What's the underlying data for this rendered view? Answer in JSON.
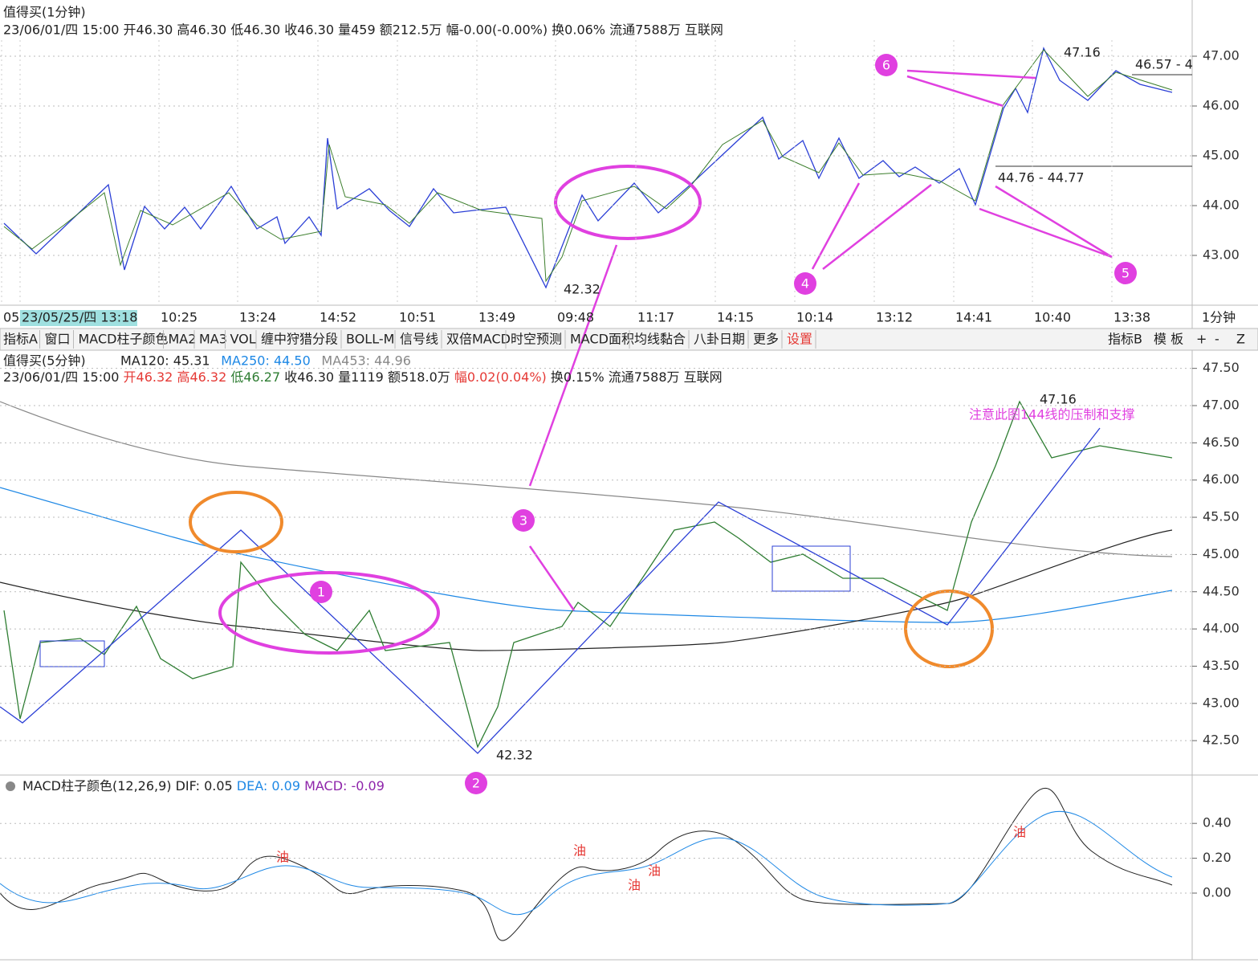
{
  "top_panel": {
    "title": "值得买(1分钟)",
    "info": "23/06/01/四 15:00 开46.30 高46.30 低46.30 收46.30 量459 额212.5万 幅-0.00(-0.00%) 换0.06% 流通7588万 互联网",
    "yticks": [
      {
        "value": 47,
        "label": "47.00"
      },
      {
        "value": 46,
        "label": "46.00"
      },
      {
        "value": 45,
        "label": "45.00"
      },
      {
        "value": 44,
        "label": "44.00"
      },
      {
        "value": 43,
        "label": "43.00"
      }
    ],
    "price_labels": [
      "47.16",
      "46.57 - 4",
      "44.76 - 44.77",
      "42.32"
    ],
    "time_labels": [
      "05",
      "23/05/25/四 13:18",
      "10:25",
      "13:24",
      "14:52",
      "10:51",
      "13:49",
      "09:48",
      "11:17",
      "14:15",
      "10:14",
      "13:12",
      "14:41",
      "10:40",
      "13:38"
    ],
    "period": "1分钟"
  },
  "toolbar": {
    "left": [
      "指标A",
      "窗口",
      "MACD柱子颜色",
      "MA2",
      "MA3",
      "VOL",
      "缠中狩猎分段",
      "BOLL-M",
      "信号线",
      "双倍MACD",
      "时空预测",
      "MACD面积",
      "均线黏合",
      "八卦日期",
      "更多",
      "设置"
    ],
    "right": [
      "指标B",
      "模 板",
      "+",
      "-",
      "Z"
    ]
  },
  "mid_panel": {
    "title": "值得买(5分钟)",
    "ma": [
      {
        "text": "MA120: 45.31",
        "color": "#222222"
      },
      {
        "text": "MA250: 44.50",
        "color": "#1e88e5"
      },
      {
        "text": "MA453: 44.96",
        "color": "#888888"
      }
    ],
    "info": [
      {
        "text": "23/06/01/四 15:00 ",
        "color": "#222222"
      },
      {
        "text": "开46.32 高46.32 ",
        "color": "#e53935"
      },
      {
        "text": "低46.27 ",
        "color": "#2e7d32"
      },
      {
        "text": "收46.30 量1119 额518.0万 ",
        "color": "#222222"
      },
      {
        "text": "幅0.02(0.04%) ",
        "color": "#e53935"
      },
      {
        "text": "换0.15% 流通7588万 互联网",
        "color": "#222222"
      }
    ],
    "yticks": [
      {
        "value": 47.5,
        "label": "47.50"
      },
      {
        "value": 47,
        "label": "47.00"
      },
      {
        "value": 46.5,
        "label": "46.50"
      },
      {
        "value": 46,
        "label": "46.00"
      },
      {
        "value": 45.5,
        "label": "45.50"
      },
      {
        "value": 45,
        "label": "45.00"
      },
      {
        "value": 44.5,
        "label": "44.50"
      },
      {
        "value": 44,
        "label": "44.00"
      },
      {
        "value": 43.5,
        "label": "43.50"
      },
      {
        "value": 43,
        "label": "43.00"
      },
      {
        "value": 42.5,
        "label": "42.50"
      }
    ],
    "price_labels": [
      "47.16",
      "42.32"
    ],
    "note": "注意此图144线的压制和支撑"
  },
  "macd_panel": {
    "info": [
      {
        "text": "MACD柱子颜色(12,26,9) ",
        "color": "#222222"
      },
      {
        "text": "DIF: 0.05 ",
        "color": "#222222"
      },
      {
        "text": "DEA: 0.09 ",
        "color": "#1e88e5"
      },
      {
        "text": "MACD: -0.09",
        "color": "#8e24aa"
      }
    ],
    "yticks": [
      {
        "value": 0.4,
        "label": "0.40"
      },
      {
        "value": 0.2,
        "label": "0.20"
      },
      {
        "value": 0,
        "label": "0.00"
      }
    ],
    "oil_label": "油"
  },
  "markers": [
    "1",
    "2",
    "3",
    "4",
    "5",
    "6"
  ]
}
